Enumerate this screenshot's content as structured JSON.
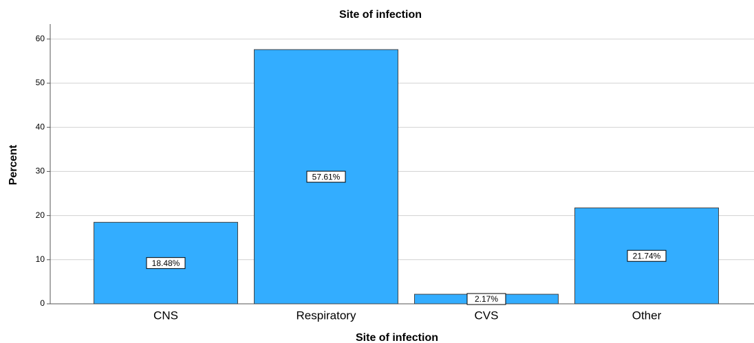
{
  "chart_data": {
    "type": "bar",
    "title": "Site of infection",
    "x_label": "Site of infection",
    "y_label": "Percent",
    "categories": [
      "CNS",
      "Respiratory",
      "CVS",
      "Other"
    ],
    "values": [
      18.48,
      57.61,
      2.17,
      21.74
    ],
    "value_labels": [
      "18.48%",
      "57.61%",
      "2.17%",
      "21.74%"
    ],
    "color": "#33adff",
    "ylim": [
      0,
      63.4
    ],
    "yticks": [
      0,
      10,
      20,
      30,
      40,
      50,
      60
    ],
    "grid": true
  }
}
